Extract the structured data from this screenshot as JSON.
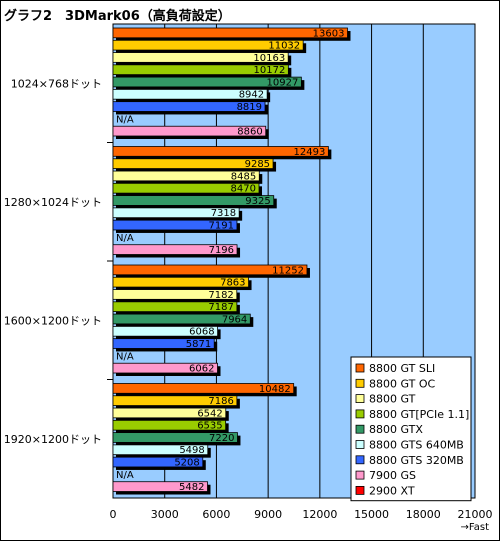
{
  "chart_data": {
    "type": "bar",
    "orientation": "horizontal",
    "title": "グラフ2　3DMark06（高負荷設定）",
    "categories": [
      "1024×768ドット",
      "1280×1024ドット",
      "1600×1200ドット",
      "1920×1200ドット"
    ],
    "series": [
      {
        "name": "8800 GT SLI",
        "color": "#ff6600",
        "values": [
          13603,
          12493,
          11252,
          10482
        ]
      },
      {
        "name": "8800 GT OC",
        "color": "#ffcc00",
        "values": [
          11032,
          9285,
          7863,
          7186
        ]
      },
      {
        "name": "8800 GT",
        "color": "#ffff99",
        "values": [
          10163,
          8485,
          7182,
          6542
        ]
      },
      {
        "name": "8800 GT[PCIe 1.1]",
        "color": "#99cc00",
        "values": [
          10172,
          8470,
          7187,
          6535
        ]
      },
      {
        "name": "8800 GTX",
        "color": "#339966",
        "values": [
          10927,
          9325,
          7964,
          7220
        ]
      },
      {
        "name": "8800 GTS 640MB",
        "color": "#ccffff",
        "values": [
          8942,
          7318,
          6068,
          5498
        ]
      },
      {
        "name": "8800 GTS 320MB",
        "color": "#3366ff",
        "values": [
          8819,
          7191,
          5871,
          5208
        ]
      },
      {
        "name": "7900 GS",
        "color": "#ff99cc",
        "values": [
          8860,
          7196,
          6062,
          5482
        ]
      },
      {
        "name": "2900 XT",
        "color": "#ff0000",
        "values": [
          null,
          null,
          null,
          null
        ]
      }
    ],
    "missing_label": "N/A",
    "xlim": [
      0,
      21000
    ],
    "xticks": [
      "0",
      "3000",
      "6000",
      "9000",
      "12000",
      "15000",
      "18000",
      "21000"
    ],
    "xlabel": "→Fast",
    "plot_background": "#99ccff",
    "grid": true,
    "legend_position": "bottom-right"
  }
}
